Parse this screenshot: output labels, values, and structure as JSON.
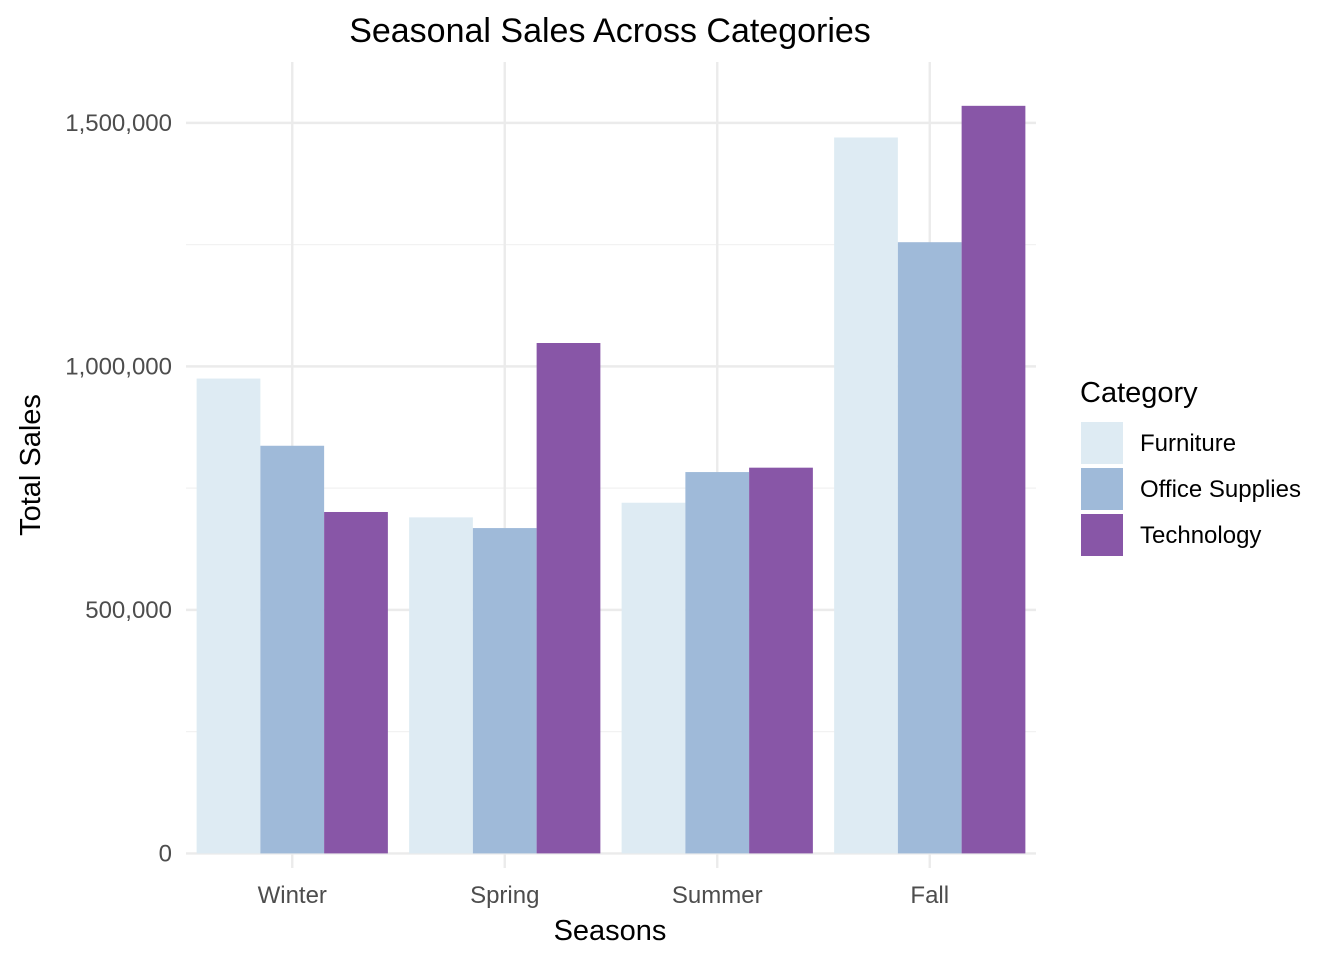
{
  "chart_data": {
    "type": "bar",
    "title": "Seasonal Sales Across Categories",
    "xlabel": "Seasons",
    "ylabel": "Total Sales",
    "categories": [
      "Winter",
      "Spring",
      "Summer",
      "Fall"
    ],
    "series": [
      {
        "name": "Furniture",
        "values": [
          975000,
          690000,
          720000,
          1470000
        ],
        "color": "#deebf3"
      },
      {
        "name": "Office Supplies",
        "values": [
          837000,
          668000,
          783000,
          1255000
        ],
        "color": "#9fbad9"
      },
      {
        "name": "Technology",
        "values": [
          701000,
          1048000,
          792000,
          1535000
        ],
        "color": "#8856a7"
      }
    ],
    "ylim": [
      -30000,
      1625000
    ],
    "yticks": [
      0,
      500000,
      1000000,
      1500000
    ],
    "ytick_labels": [
      "0",
      "500,000",
      "1,000,000",
      "1,500,000"
    ],
    "y_minor_ticks": [
      250000,
      750000,
      1250000
    ],
    "grid": true,
    "legend": {
      "title": "Category",
      "position": "right"
    }
  }
}
